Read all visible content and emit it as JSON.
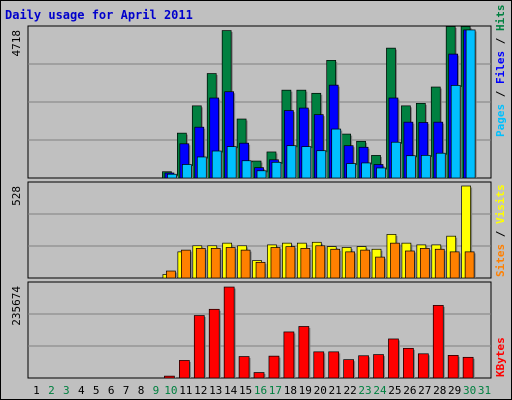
{
  "title": "Daily usage for April 2011",
  "colors": {
    "background": "#c0c0c0",
    "plot_background": "#c0c0c0",
    "title_text": "#0000cc",
    "hits": "#008040",
    "files": "#0000ff",
    "pages": "#00c0ff",
    "visits": "#ffff00",
    "sites": "#ff8000",
    "kbytes": "#ff0000",
    "weekday_label": "#000000",
    "weekend_label": "#008040"
  },
  "legend": {
    "top": [
      {
        "text": "Pages",
        "color": "#00c0ff"
      },
      {
        "text": " / ",
        "color": "#000000"
      },
      {
        "text": "Files",
        "color": "#0000ff"
      },
      {
        "text": " / ",
        "color": "#000000"
      },
      {
        "text": "Hits",
        "color": "#008040"
      }
    ],
    "middle": [
      {
        "text": "Sites",
        "color": "#ff8000"
      },
      {
        "text": " / ",
        "color": "#000000"
      },
      {
        "text": "Visits",
        "color": "#ffff00"
      }
    ],
    "bottom": [
      {
        "text": "KBytes",
        "color": "#ff0000"
      }
    ]
  },
  "chart_data": [
    {
      "type": "bar",
      "panel": "top",
      "ymax_label": "4718",
      "ylim": [
        0,
        4718
      ],
      "categories": [
        "1",
        "2",
        "3",
        "4",
        "5",
        "6",
        "7",
        "8",
        "9",
        "10",
        "11",
        "12",
        "13",
        "14",
        "15",
        "16",
        "17",
        "18",
        "19",
        "20",
        "21",
        "22",
        "23",
        "24",
        "25",
        "26",
        "27",
        "28",
        "29",
        "30",
        "31"
      ],
      "series": [
        {
          "name": "Hits",
          "values": [
            0,
            0,
            0,
            0,
            0,
            0,
            0,
            0,
            0,
            200,
            1430,
            2300,
            3330,
            4700,
            1880,
            540,
            830,
            2800,
            2800,
            2700,
            3750,
            1400,
            1170,
            720,
            4140,
            2300,
            2380,
            2900,
            4830,
            4830,
            0
          ]
        },
        {
          "name": "Files",
          "values": [
            0,
            0,
            0,
            0,
            0,
            0,
            0,
            0,
            0,
            160,
            1090,
            1620,
            2550,
            2750,
            1110,
            330,
            580,
            2150,
            2230,
            2020,
            2960,
            1030,
            980,
            430,
            2550,
            1780,
            1770,
            1780,
            3950,
            4720,
            0
          ]
        },
        {
          "name": "Pages",
          "values": [
            0,
            0,
            0,
            0,
            0,
            0,
            0,
            0,
            0,
            120,
            430,
            670,
            860,
            1000,
            550,
            230,
            500,
            1030,
            1000,
            870,
            1560,
            460,
            480,
            320,
            1140,
            710,
            720,
            790,
            2950,
            4720,
            0
          ]
        }
      ]
    },
    {
      "type": "bar",
      "panel": "middle",
      "ymax_label": "528",
      "ylim": [
        0,
        528
      ],
      "categories": [
        "1",
        "2",
        "3",
        "4",
        "5",
        "6",
        "7",
        "8",
        "9",
        "10",
        "11",
        "12",
        "13",
        "14",
        "15",
        "16",
        "17",
        "18",
        "19",
        "20",
        "21",
        "22",
        "23",
        "24",
        "25",
        "26",
        "27",
        "28",
        "29",
        "30",
        "31"
      ],
      "series": [
        {
          "name": "Visits",
          "values": [
            0,
            0,
            0,
            0,
            0,
            0,
            0,
            0,
            0,
            20,
            150,
            185,
            185,
            200,
            185,
            100,
            190,
            200,
            200,
            205,
            180,
            175,
            180,
            165,
            250,
            200,
            190,
            190,
            240,
            528,
            0
          ]
        },
        {
          "name": "Sites",
          "values": [
            0,
            0,
            0,
            0,
            0,
            0,
            0,
            0,
            0,
            40,
            160,
            170,
            170,
            175,
            160,
            90,
            175,
            180,
            170,
            185,
            165,
            150,
            160,
            120,
            200,
            155,
            170,
            165,
            150,
            150,
            0
          ]
        }
      ]
    },
    {
      "type": "bar",
      "panel": "bottom",
      "ymax_label": "235674",
      "ylim": [
        0,
        235674
      ],
      "categories": [
        "1",
        "2",
        "3",
        "4",
        "5",
        "6",
        "7",
        "8",
        "9",
        "10",
        "11",
        "12",
        "13",
        "14",
        "15",
        "16",
        "17",
        "18",
        "19",
        "20",
        "21",
        "22",
        "23",
        "24",
        "25",
        "26",
        "27",
        "28",
        "29",
        "30",
        "31"
      ],
      "series": [
        {
          "name": "KBytes",
          "values": [
            0,
            0,
            0,
            0,
            0,
            0,
            0,
            0,
            0,
            4800,
            45000,
            160000,
            176000,
            233000,
            55000,
            14000,
            56000,
            118000,
            132000,
            67000,
            67000,
            47000,
            57000,
            60000,
            100000,
            76000,
            62000,
            186000,
            58000,
            53000,
            0
          ]
        }
      ]
    }
  ],
  "x_labels": [
    {
      "text": "1",
      "weekend": false
    },
    {
      "text": "2",
      "weekend": true
    },
    {
      "text": "3",
      "weekend": true
    },
    {
      "text": "4",
      "weekend": false
    },
    {
      "text": "5",
      "weekend": false
    },
    {
      "text": "6",
      "weekend": false
    },
    {
      "text": "7",
      "weekend": false
    },
    {
      "text": "8",
      "weekend": false
    },
    {
      "text": "9",
      "weekend": true
    },
    {
      "text": "10",
      "weekend": true
    },
    {
      "text": "11",
      "weekend": false
    },
    {
      "text": "12",
      "weekend": false
    },
    {
      "text": "13",
      "weekend": false
    },
    {
      "text": "14",
      "weekend": false
    },
    {
      "text": "15",
      "weekend": false
    },
    {
      "text": "16",
      "weekend": true
    },
    {
      "text": "17",
      "weekend": true
    },
    {
      "text": "18",
      "weekend": false
    },
    {
      "text": "19",
      "weekend": false
    },
    {
      "text": "20",
      "weekend": false
    },
    {
      "text": "21",
      "weekend": false
    },
    {
      "text": "22",
      "weekend": false
    },
    {
      "text": "23",
      "weekend": true
    },
    {
      "text": "24",
      "weekend": true
    },
    {
      "text": "25",
      "weekend": false
    },
    {
      "text": "26",
      "weekend": false
    },
    {
      "text": "27",
      "weekend": false
    },
    {
      "text": "28",
      "weekend": false
    },
    {
      "text": "29",
      "weekend": false
    },
    {
      "text": "30",
      "weekend": true
    },
    {
      "text": "31",
      "weekend": true
    }
  ]
}
